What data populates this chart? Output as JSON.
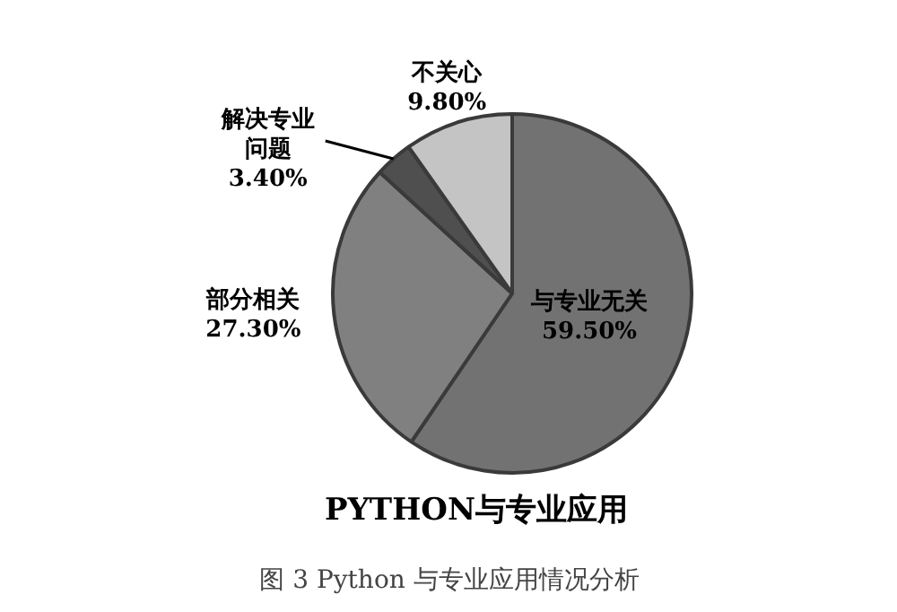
{
  "chart_data": {
    "type": "pie",
    "title": "PYTHON与专业应用",
    "categories": [
      "与专业无关",
      "部分相关",
      "解决专业问题",
      "不关心"
    ],
    "values": [
      59.5,
      27.3,
      3.4,
      9.8
    ],
    "colors": [
      "#727272",
      "#808080",
      "#4f4f4f",
      "#c4c4c4"
    ],
    "value_labels": [
      "59.50%",
      "27.30%",
      "3.40%",
      "9.80%"
    ],
    "annotations": [
      "图 3 Python 与专业应用情况分析"
    ]
  }
}
